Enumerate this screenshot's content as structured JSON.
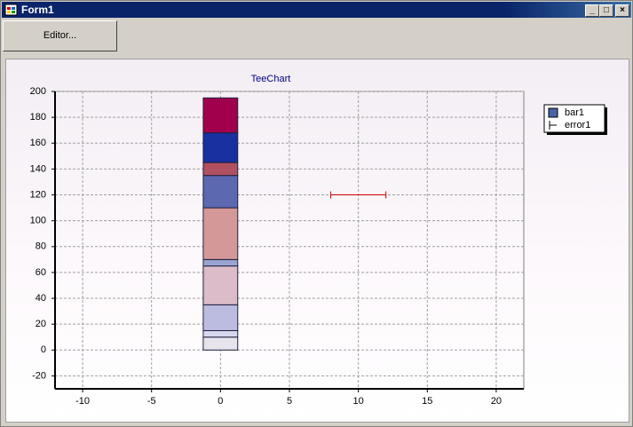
{
  "window": {
    "title": "Form1",
    "button": "Editor..."
  },
  "chart_data": {
    "type": "stacked-bar-error",
    "title": "TeeChart",
    "xlim": [
      -12,
      22
    ],
    "xticks": [
      -10,
      -5,
      0,
      5,
      10,
      15,
      20
    ],
    "ylim": [
      -30,
      200
    ],
    "yticks": [
      -20,
      0,
      20,
      40,
      60,
      80,
      100,
      120,
      140,
      160,
      180,
      200
    ],
    "grid": true,
    "legend": "right",
    "series": [
      {
        "name": "bar1",
        "color": "#4a64a8",
        "x": 0,
        "values": [
          10,
          5,
          20,
          30,
          5,
          40,
          25,
          10,
          23,
          27
        ],
        "colors": [
          "#e8e4ec",
          "#d8d8ee",
          "#bcbce0",
          "#dcbcc8",
          "#9aa4d0",
          "#d49898",
          "#5c68b0",
          "#b05060",
          "#1830a0",
          "#a0004c"
        ]
      },
      {
        "name": "error1",
        "color": "#cc0000",
        "x": 10,
        "y": 120,
        "error": 2
      }
    ]
  }
}
